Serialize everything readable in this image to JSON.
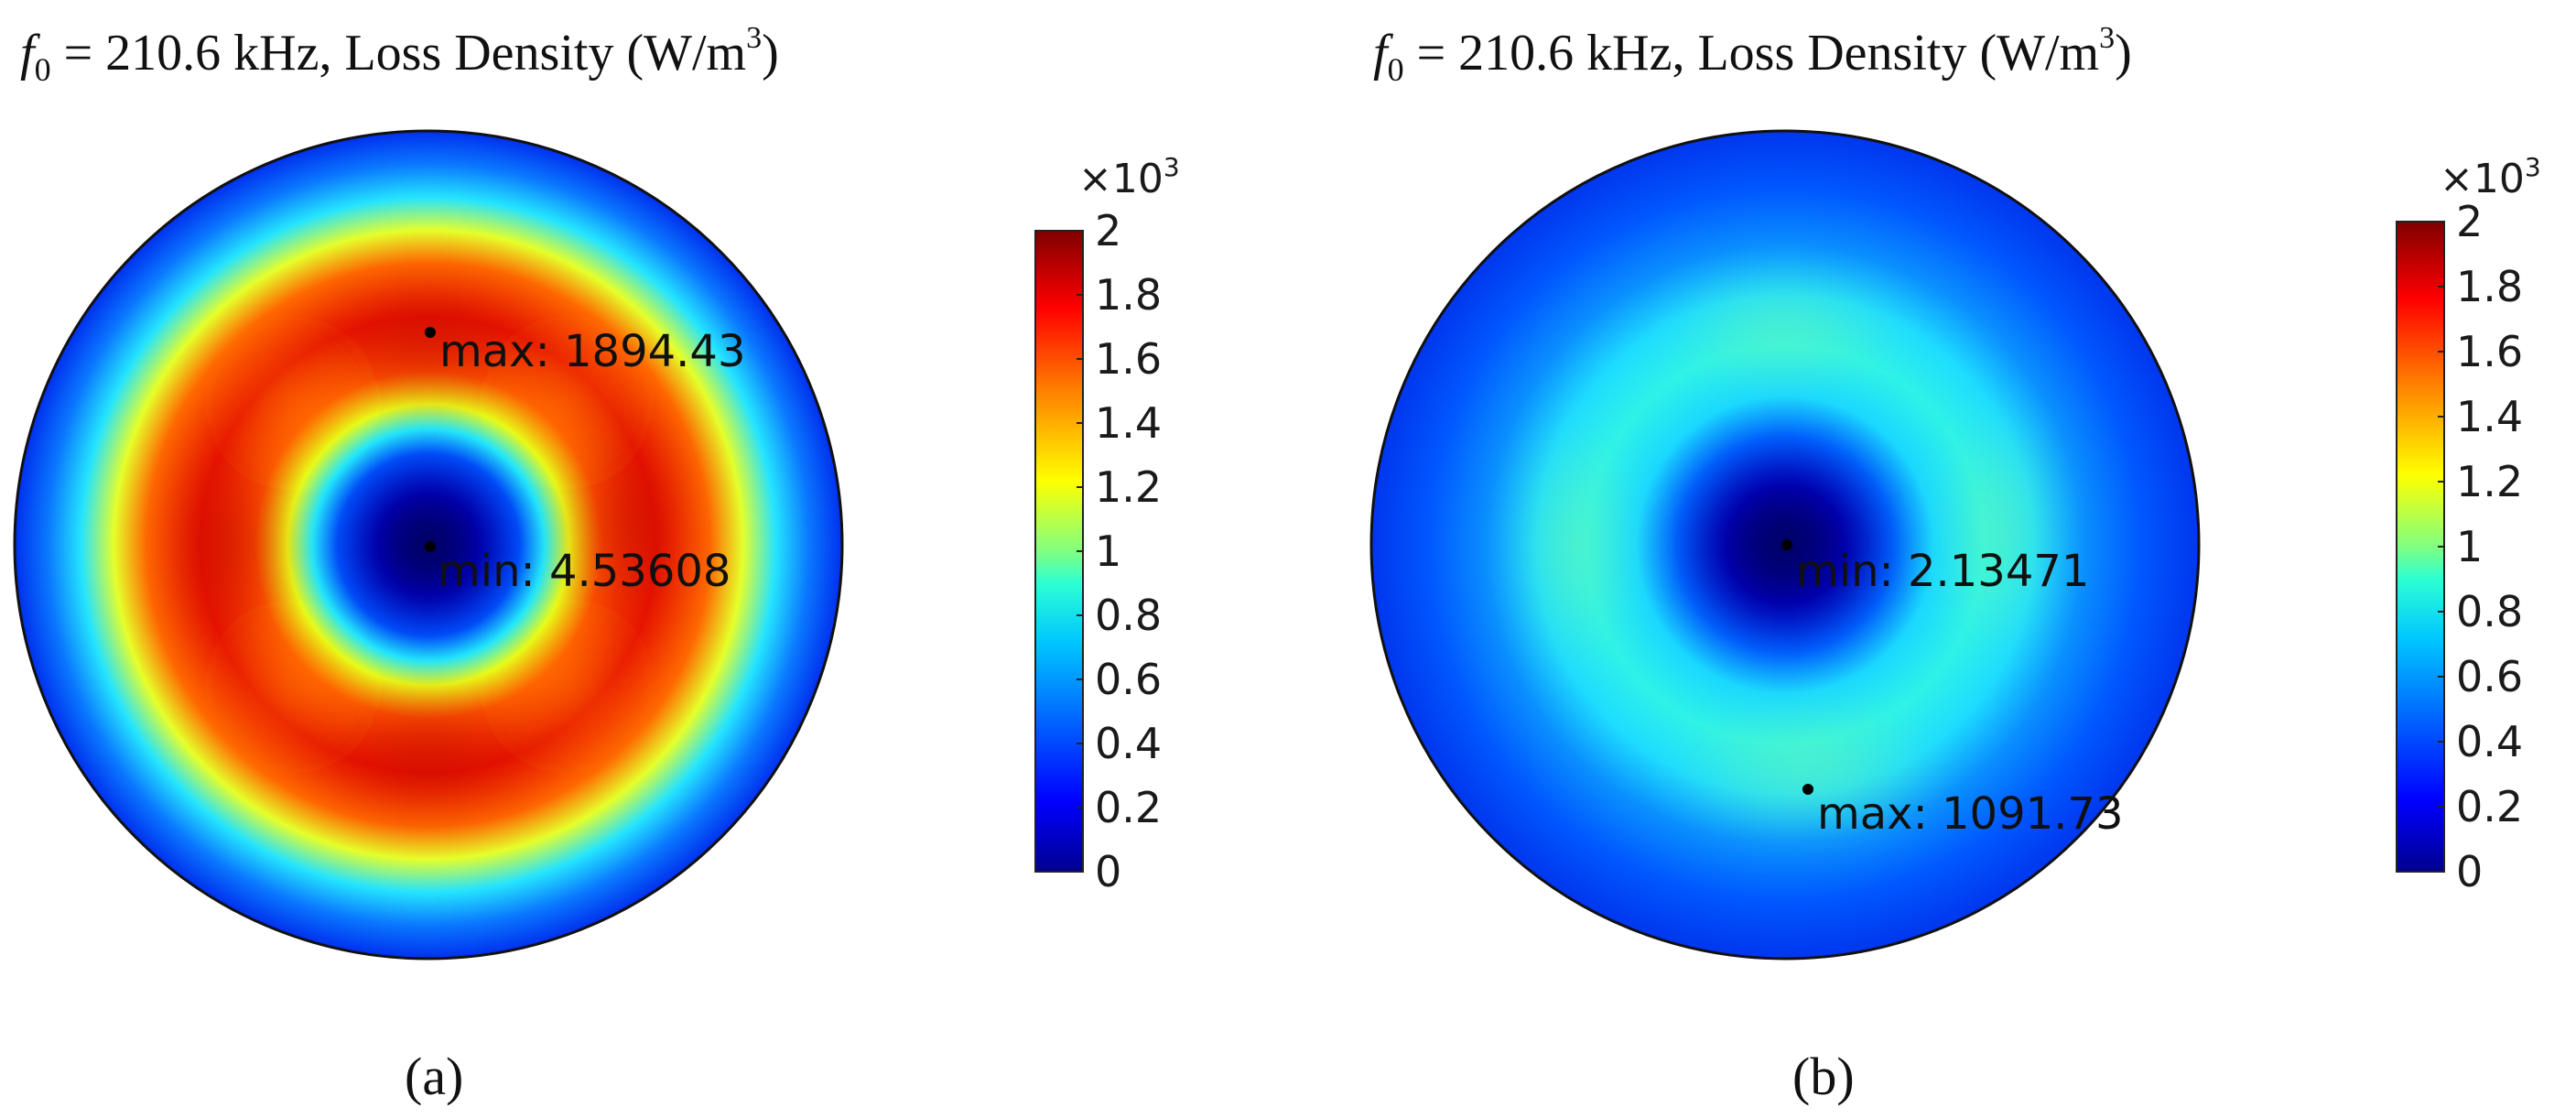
{
  "chart_data": [
    {
      "type": "heatmap",
      "panel": "(a)",
      "title_prefix": "f",
      "title_subscript": "0",
      "title_main": " = 210.6 kHz, Loss Density (W/m",
      "title_superscript": "3",
      "title_suffix": ")",
      "caption": "(a)",
      "colorbar": {
        "multiplier_base": "×10",
        "multiplier_exponent": "3",
        "ticks": [
          "2",
          "1.8",
          "1.6",
          "1.4",
          "1.2",
          "1",
          "0.8",
          "0.6",
          "0.4",
          "0.2",
          "0"
        ],
        "range": [
          0,
          2000
        ],
        "colormap": [
          "#00008f",
          "#0000ff",
          "#0080ff",
          "#00ffff",
          "#80ff80",
          "#ffff00",
          "#ff8000",
          "#ff0000",
          "#800000"
        ]
      },
      "annotations": [
        {
          "label": "max",
          "text": "max: 1894.43",
          "value": 1894.43
        },
        {
          "label": "min",
          "text": "min: 4.53608",
          "value": 4.53608
        }
      ],
      "pattern": "ring",
      "center_value": 4.5,
      "ring_value": 1894.4,
      "edge_value": 200
    },
    {
      "type": "heatmap",
      "panel": "(b)",
      "title_prefix": "f",
      "title_subscript": "0",
      "title_main": " = 210.6 kHz, Loss Density (W/m",
      "title_superscript": "3",
      "title_suffix": ")",
      "caption": "(b)",
      "colorbar": {
        "multiplier_base": "×10",
        "multiplier_exponent": "3",
        "ticks": [
          "2",
          "1.8",
          "1.6",
          "1.4",
          "1.2",
          "1",
          "0.8",
          "0.6",
          "0.4",
          "0.2",
          "0"
        ],
        "range": [
          0,
          2000
        ],
        "colormap": [
          "#00008f",
          "#0000ff",
          "#0080ff",
          "#00ffff",
          "#80ff80",
          "#ffff00",
          "#ff8000",
          "#ff0000",
          "#800000"
        ]
      },
      "annotations": [
        {
          "label": "min",
          "text": "min: 2.13471",
          "value": 2.13471
        },
        {
          "label": "max",
          "text": "max: 1091.73",
          "value": 1091.73
        }
      ],
      "pattern": "ring",
      "center_value": 2.1,
      "ring_value": 900,
      "edge_value": 150
    }
  ]
}
